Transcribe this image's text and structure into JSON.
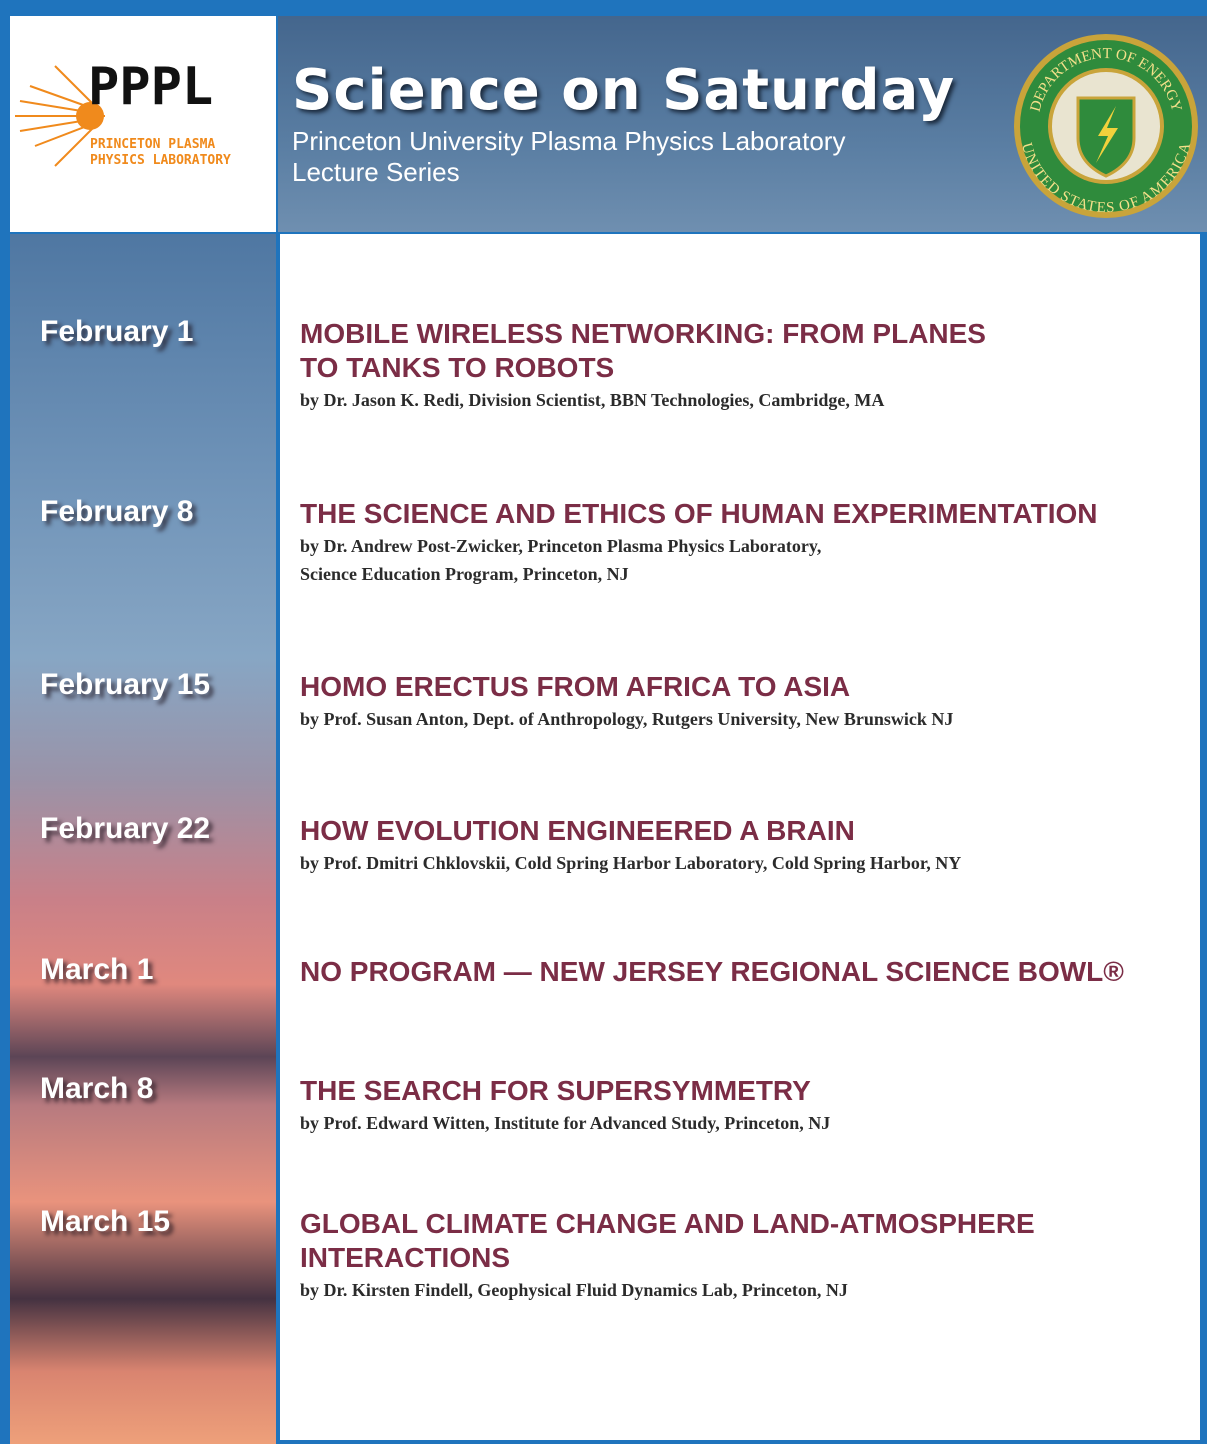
{
  "header": {
    "logo": {
      "mark": "PPPL",
      "line1": "PRINCETON PLASMA",
      "line2": "PHYSICS LABORATORY"
    },
    "title": "Science on Saturday",
    "subtitle": [
      "Princeton University Plasma Physics Laboratory",
      "Lecture Series"
    ],
    "seal": {
      "top": "DEPARTMENT OF ENERGY",
      "bottom": "UNITED STATES OF AMERICA"
    }
  },
  "events": [
    {
      "date": "February 1",
      "title": [
        "MOBILE WIRELESS NETWORKING: FROM PLANES",
        "TO TANKS TO ROBOTS"
      ],
      "speaker": [
        "by Dr. Jason K. Redi, Division Scientist, BBN Technologies, Cambridge, MA"
      ]
    },
    {
      "date": "February 8",
      "title": [
        "THE SCIENCE AND ETHICS OF HUMAN EXPERIMENTATION"
      ],
      "speaker": [
        "by Dr. Andrew Post-Zwicker, Princeton Plasma Physics Laboratory,",
        "Science Education Program, Princeton, NJ"
      ]
    },
    {
      "date": "February 15",
      "title": [
        "HOMO ERECTUS FROM AFRICA TO ASIA"
      ],
      "speaker": [
        "by Prof. Susan Anton, Dept. of Anthropology, Rutgers University, New Brunswick NJ"
      ]
    },
    {
      "date": "February 22",
      "title": [
        "HOW EVOLUTION ENGINEERED A BRAIN"
      ],
      "speaker": [
        "by Prof. Dmitri Chklovskii, Cold Spring Harbor Laboratory, Cold Spring Harbor, NY"
      ]
    },
    {
      "date": "March 1",
      "title": [
        "NO PROGRAM — NEW JERSEY REGIONAL SCIENCE BOWL®"
      ],
      "speaker": []
    },
    {
      "date": "March 8",
      "title": [
        "THE SEARCH FOR SUPERSYMMETRY"
      ],
      "speaker": [
        "by Prof. Edward Witten, Institute for Advanced Study, Princeton, NJ"
      ]
    },
    {
      "date": "March 15",
      "title": [
        "GLOBAL CLIMATE CHANGE AND LAND-ATMOSPHERE",
        "INTERACTIONS"
      ],
      "speaker": [
        "by Dr. Kirsten Findell, Geophysical Fluid Dynamics Lab, Princeton, NJ"
      ]
    }
  ]
}
